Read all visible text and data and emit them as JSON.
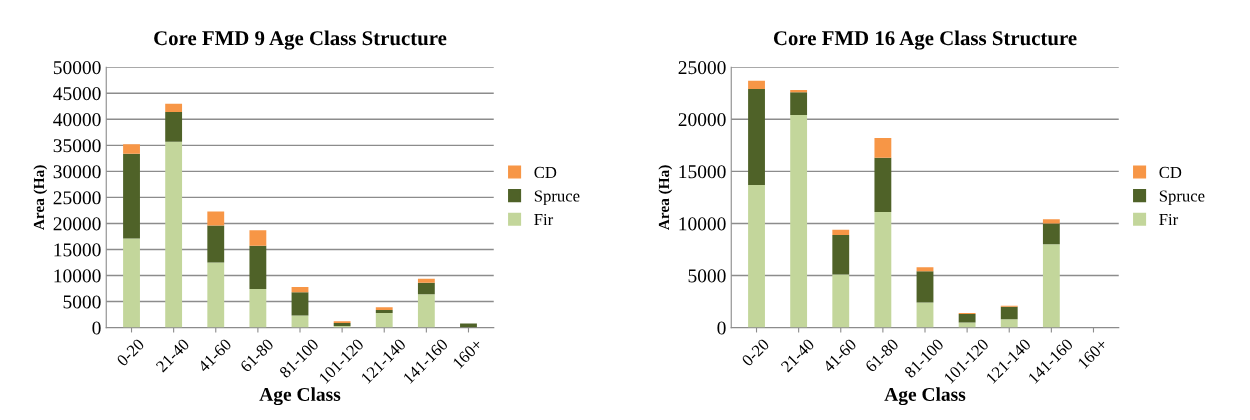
{
  "chart_data": [
    {
      "type": "bar",
      "title": "Core FMD 9 Age Class Structure",
      "xlabel": "Age Class",
      "ylabel": "Area (Ha)",
      "categories": [
        "0-20",
        "21-40",
        "41-60",
        "61-80",
        "81-100",
        "101-120",
        "121-140",
        "141-160",
        "160+"
      ],
      "stacked": true,
      "ylim": [
        0,
        50000
      ],
      "yticks": [
        0,
        5000,
        10000,
        15000,
        20000,
        25000,
        30000,
        35000,
        40000,
        45000,
        50000
      ],
      "grid": "y",
      "legend": "right",
      "series": [
        {
          "name": "Fir",
          "color": "#c3d69b",
          "values": [
            17100,
            35700,
            12500,
            7400,
            2300,
            300,
            2800,
            6400,
            null
          ]
        },
        {
          "name": "Spruce",
          "color": "#4f6228",
          "values": [
            16300,
            5700,
            7100,
            8300,
            4500,
            600,
            600,
            2200,
            800
          ]
        },
        {
          "name": "CD",
          "color": "#f79646",
          "values": [
            1800,
            1600,
            2700,
            3000,
            1000,
            300,
            500,
            800,
            0
          ]
        }
      ]
    },
    {
      "type": "bar",
      "title": "Core FMD 16 Age Class Structure",
      "xlabel": "Age Class",
      "ylabel": "Area (Ha)",
      "categories": [
        "0-20",
        "21-40",
        "41-60",
        "61-80",
        "81-100",
        "101-120",
        "121-140",
        "141-160",
        "160+"
      ],
      "stacked": true,
      "ylim": [
        0,
        25000
      ],
      "yticks": [
        0,
        5000,
        10000,
        15000,
        20000,
        25000
      ],
      "grid": "y",
      "legend": "right",
      "series": [
        {
          "name": "Fir",
          "color": "#c3d69b",
          "values": [
            13700,
            20400,
            5100,
            11100,
            2400,
            500,
            800,
            8000,
            0
          ]
        },
        {
          "name": "Spruce",
          "color": "#4f6228",
          "values": [
            9200,
            2200,
            3800,
            5200,
            3000,
            800,
            1200,
            2000,
            0
          ]
        },
        {
          "name": "CD",
          "color": "#f79646",
          "values": [
            800,
            200,
            500,
            1900,
            400,
            100,
            100,
            400,
            0
          ]
        }
      ]
    }
  ]
}
